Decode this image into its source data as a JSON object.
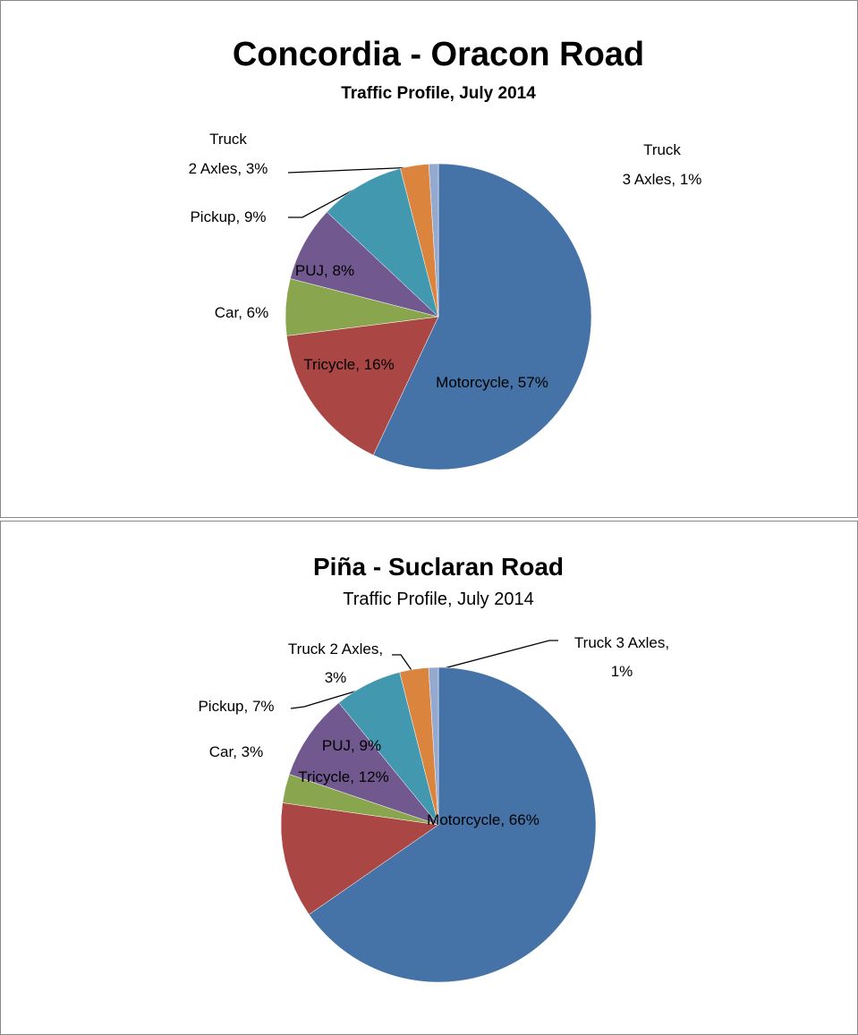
{
  "chart_data": [
    {
      "type": "pie",
      "title": "Concordia - Oracon Road",
      "subtitle": "Traffic Profile, July 2014",
      "values": [
        57,
        16,
        6,
        8,
        9,
        3,
        1
      ],
      "value_labels": [
        "Motorcycle, 57%",
        "Tricycle, 16%",
        "Car, 6%",
        "PUJ, 8%",
        "Pickup, 9%",
        "Truck\n2 Axles, 3%",
        "Truck\n3 Axles, 1%"
      ],
      "colors": [
        "#4572a7",
        "#aa4643",
        "#89a54e",
        "#71588f",
        "#4198af",
        "#db843d",
        "#93a9cf"
      ]
    },
    {
      "type": "pie",
      "title": "Piña - Suclaran Road",
      "subtitle": "Traffic Profile, July 2014",
      "values": [
        66,
        12,
        3,
        9,
        7,
        3,
        1
      ],
      "value_labels": [
        "Motorcycle, 66%",
        "Tricycle, 12%",
        "Car, 3%",
        "PUJ, 9%",
        "Pickup, 7%",
        "Truck 2 Axles,\n3%",
        "Truck 3 Axles,\n1%"
      ],
      "colors": [
        "#4572a7",
        "#aa4643",
        "#89a54e",
        "#71588f",
        "#4198af",
        "#db843d",
        "#93a9cf"
      ]
    }
  ]
}
